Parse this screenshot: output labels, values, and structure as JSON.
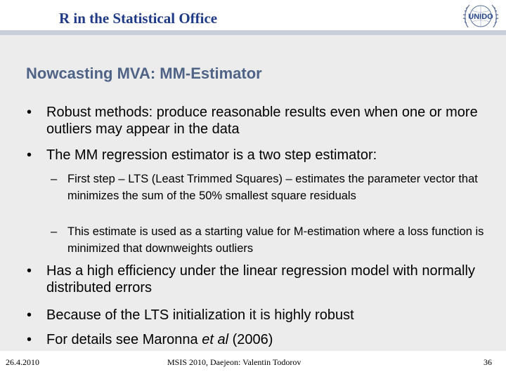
{
  "header": {
    "title": "R in the Statistical Office",
    "logo_text": "UNIDO"
  },
  "slide": {
    "title": "Nowcasting MVA: MM-Estimator",
    "bullets": [
      "Robust methods: produce reasonable results even when one or more outliers may appear in the data",
      "The MM regression estimator is a two step estimator:"
    ],
    "sub_bullets": [
      "First step – LTS (Least Trimmed Squares) – estimates the parameter vector that minimizes the sum of the 50% smallest square residuals",
      "This estimate is used as a starting value for M-estimation where a loss function is minimized that downweights outliers"
    ],
    "bullets_after": [
      "Has a high efficiency under the linear regression model with normally distributed errors",
      "Because of the LTS initialization it is highly robust"
    ],
    "last_bullet": {
      "prefix": "For details see Maronna ",
      "italic": "et al",
      "suffix": " (2006)"
    }
  },
  "footer": {
    "date": "26.4.2010",
    "center": "MSIS 2010, Daejeon: Valentin Todorov",
    "page": "36"
  },
  "colors": {
    "header_text": "#1f3a86",
    "title_text": "#4f6387",
    "panel_bg": "#ececec",
    "header_bar": "#c8cfd8"
  }
}
